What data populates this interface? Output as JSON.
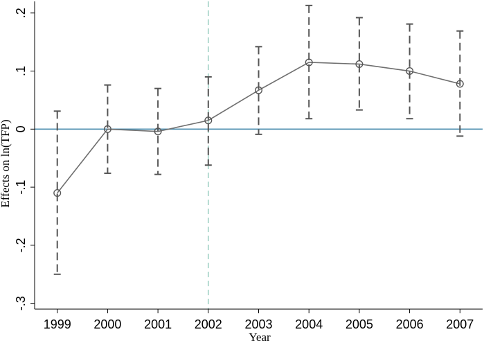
{
  "chart_data": {
    "type": "line",
    "xlabel": "Year",
    "ylabel": "Effects on ln(TFP)",
    "x": [
      1999,
      2000,
      2001,
      2002,
      2003,
      2004,
      2005,
      2006,
      2007
    ],
    "x_tick_labels": [
      "1999",
      "2000",
      "2001",
      "2002",
      "2003",
      "2004",
      "2005",
      "2006",
      "2007"
    ],
    "y_ticks": [
      0.2,
      0.1,
      0,
      -0.1,
      -0.2,
      -0.3
    ],
    "y_tick_labels": [
      ".2",
      ".1",
      "0",
      "-.1",
      "-.2",
      "-.3"
    ],
    "ylim": [
      -0.31,
      0.22
    ],
    "xlim": [
      1998.55,
      2007.45
    ],
    "grid": false,
    "series": [
      {
        "values": [
          -0.11,
          0.0,
          -0.004,
          0.015,
          0.067,
          0.115,
          0.112,
          0.1,
          0.078
        ],
        "ci_low": [
          -0.25,
          -0.076,
          -0.078,
          -0.062,
          -0.009,
          0.018,
          0.033,
          0.018,
          -0.012
        ],
        "ci_high": [
          0.031,
          0.076,
          0.07,
          0.09,
          0.142,
          0.213,
          0.192,
          0.181,
          0.169
        ]
      }
    ],
    "reference_lines": {
      "horizontal_y": 0,
      "vertical_x": 2002
    },
    "colors": {
      "line": "#6f6f6f",
      "ci": "#555555",
      "zero_line": "#4f8fb0",
      "vertical_line": "#7fc2b0"
    }
  }
}
